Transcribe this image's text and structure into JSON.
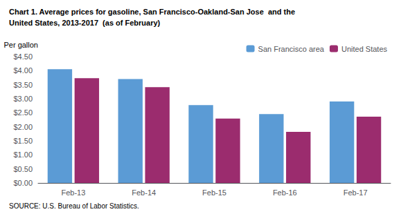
{
  "chart_data": {
    "type": "bar",
    "title": "Chart 1. Average prices for gasoline, San Francisco-Oakland-San Jose  and the\nUnited States, 2013-2017  (as of February)",
    "ylabel": "Per gallon",
    "annotations": [
      "SOURCE: U.S. Bureau of Labor Statistics."
    ],
    "categories": [
      "Feb-13",
      "Feb-14",
      "Feb-15",
      "Feb-16",
      "Feb-17"
    ],
    "series": [
      {
        "name": "San Francisco area",
        "color": "#5B9BD5",
        "values": [
          4.05,
          3.7,
          2.77,
          2.45,
          2.9
        ]
      },
      {
        "name": "United States",
        "color": "#9B2C6E",
        "values": [
          3.73,
          3.41,
          2.29,
          1.82,
          2.36
        ]
      }
    ],
    "ylim": [
      0,
      4.5
    ],
    "yticks": [
      {
        "value": 0.0,
        "label": "$0.00"
      },
      {
        "value": 0.5,
        "label": "$0.50"
      },
      {
        "value": 1.0,
        "label": "$1.00"
      },
      {
        "value": 1.5,
        "label": "$1.50"
      },
      {
        "value": 2.0,
        "label": "$2.00"
      },
      {
        "value": 2.5,
        "label": "$2.50"
      },
      {
        "value": 3.0,
        "label": "$3.00"
      },
      {
        "value": 3.5,
        "label": "$3.50"
      },
      {
        "value": 4.0,
        "label": "$4.00"
      },
      {
        "value": 4.5,
        "label": "$4.50"
      }
    ],
    "grid": false,
    "legend": "upper right"
  }
}
